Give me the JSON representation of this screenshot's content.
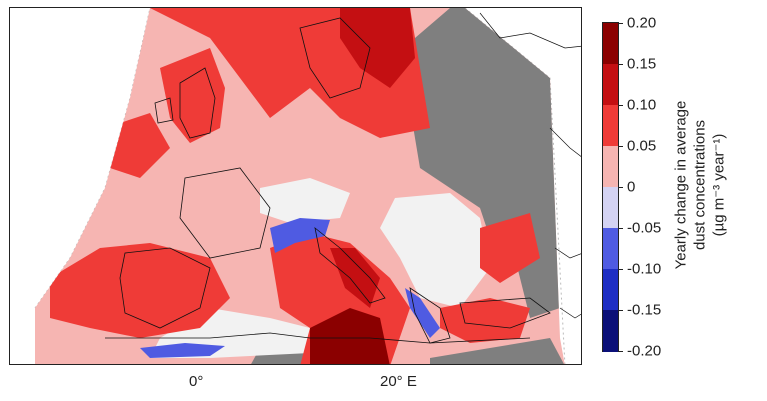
{
  "map": {
    "lon_labels": [
      "0°",
      "20° E"
    ]
  },
  "colorbar": {
    "title_line1": "Yearly change in average",
    "title_line2": "dust concentrations",
    "units": "(µg m⁻³ year⁻¹)",
    "ticks": [
      "0.20",
      "0.15",
      "0.10",
      "0.05",
      "0",
      "-0.05",
      "-0.10",
      "-0.15",
      "-0.20"
    ],
    "bins": [
      {
        "from": 0.15,
        "to": 0.2,
        "color": "#8b0000"
      },
      {
        "from": 0.1,
        "to": 0.15,
        "color": "#c40f12"
      },
      {
        "from": 0.05,
        "to": 0.1,
        "color": "#ef3b37"
      },
      {
        "from": 0.0,
        "to": 0.05,
        "color": "#f6b5b2"
      },
      {
        "from": -0.05,
        "to": 0.0,
        "color": "#d4d3f3"
      },
      {
        "from": -0.1,
        "to": -0.05,
        "color": "#4f5be2"
      },
      {
        "from": -0.15,
        "to": -0.1,
        "color": "#1e2ec4"
      },
      {
        "from": -0.2,
        "to": -0.15,
        "color": "#0b1078"
      }
    ]
  },
  "colors": {
    "no_data": "#7f7f7f",
    "near_zero": "#f2f2f2",
    "light_red": "#f6b5b2",
    "red": "#ef3b37",
    "dark_red": "#c40f12",
    "deep_red": "#8b0000",
    "blue": "#4f5be2"
  }
}
